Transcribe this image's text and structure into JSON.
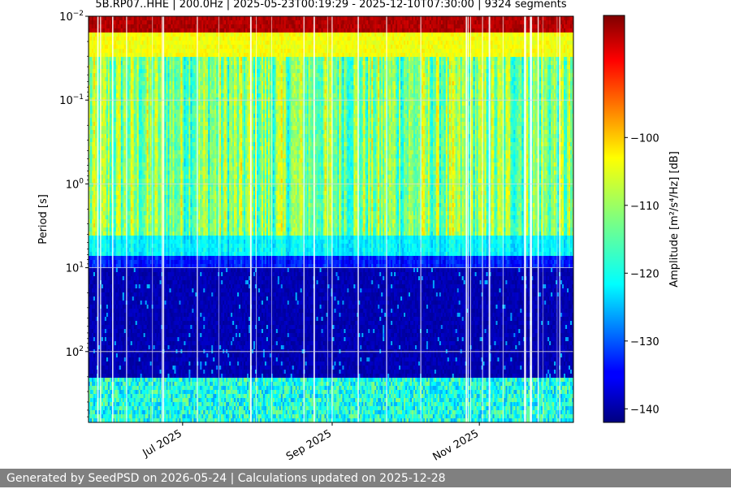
{
  "chart_data": {
    "type": "heatmap",
    "title": "5B.RP07..HHE | 200.0Hz | 2025-05-23T00:19:29 - 2025-12-10T07:30:00 | 9324 segments",
    "xlabel": "",
    "ylabel": "Period [s]",
    "y_scale": "log",
    "y_inverted": true,
    "ylim": [
      0.01,
      700
    ],
    "y_ticks": [
      {
        "value": 0.01,
        "base": "10",
        "exp": "−2"
      },
      {
        "value": 0.1,
        "base": "10",
        "exp": "−1"
      },
      {
        "value": 1,
        "base": "10",
        "exp": "0"
      },
      {
        "value": 10,
        "base": "10",
        "exp": "1"
      },
      {
        "value": 100,
        "base": "10",
        "exp": "2"
      }
    ],
    "xlim": [
      "2025-05-23",
      "2025-12-10"
    ],
    "x_ticks": [
      {
        "date": "2025-07-01",
        "label": "Jul 2025"
      },
      {
        "date": "2025-09-01",
        "label": "Sep 2025"
      },
      {
        "date": "2025-11-01",
        "label": "Nov 2025"
      }
    ],
    "grid": true,
    "colormap": "jet",
    "colorbar": {
      "label": "Amplitude [m²/s⁴/Hz] [dB]",
      "range": [
        -142,
        -82
      ],
      "ticks": [
        -100,
        -110,
        -120,
        -130,
        -140
      ],
      "tick_labels": [
        "−100",
        "−110",
        "−120",
        "−130",
        "−140"
      ]
    },
    "bands": [
      {
        "period_from": 0.01,
        "period_to": 0.015,
        "level_db": -85
      },
      {
        "period_from": 0.015,
        "period_to": 0.03,
        "level_db": -105
      },
      {
        "period_from": 0.03,
        "period_to": 4,
        "level_db": -112
      },
      {
        "period_from": 4,
        "period_to": 7,
        "level_db": -120
      },
      {
        "period_from": 7,
        "period_to": 10,
        "level_db": -133
      },
      {
        "period_from": 10,
        "period_to": 200,
        "level_db": -139
      },
      {
        "period_from": 200,
        "period_to": 700,
        "level_db": -118
      }
    ]
  },
  "footer": {
    "text": "Generated by SeedPSD on 2026-05-24 | Calculations updated on 2025-12-28"
  }
}
